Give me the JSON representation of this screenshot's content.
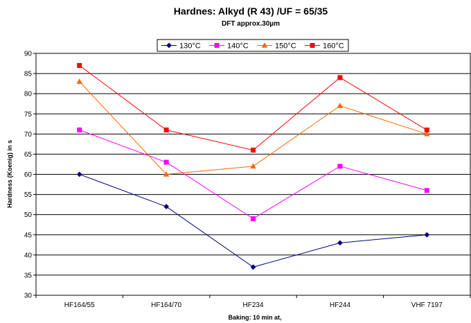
{
  "chart_data": {
    "type": "line",
    "title": "Hardnes: Alkyd (R 43) /UF = 65/35",
    "subtitle": "DFT approx.30µm",
    "xlabel": "Baking: 10 min at,",
    "ylabel": "Hardness (Koenig) in s",
    "categories": [
      "HF164/55",
      "HF164/70",
      "HF234",
      "HF244",
      "VHF 7197"
    ],
    "ylim": [
      30,
      90
    ],
    "ytick_step": 5,
    "grid": "horizontal",
    "legend_position": "top-center",
    "series": [
      {
        "name": "130°C",
        "color": "#000080",
        "marker": "diamond",
        "values": [
          60,
          52,
          37,
          43,
          45
        ]
      },
      {
        "name": "140°C",
        "color": "#FF00FF",
        "marker": "square",
        "values": [
          71,
          63,
          49,
          62,
          56
        ]
      },
      {
        "name": "150°C",
        "color": "#FF6600",
        "marker": "triangle",
        "values": [
          83,
          60,
          62,
          77,
          70
        ]
      },
      {
        "name": "160°C",
        "color": "#FF0000",
        "marker": "square",
        "values": [
          87,
          71,
          66,
          84,
          71
        ]
      }
    ]
  }
}
